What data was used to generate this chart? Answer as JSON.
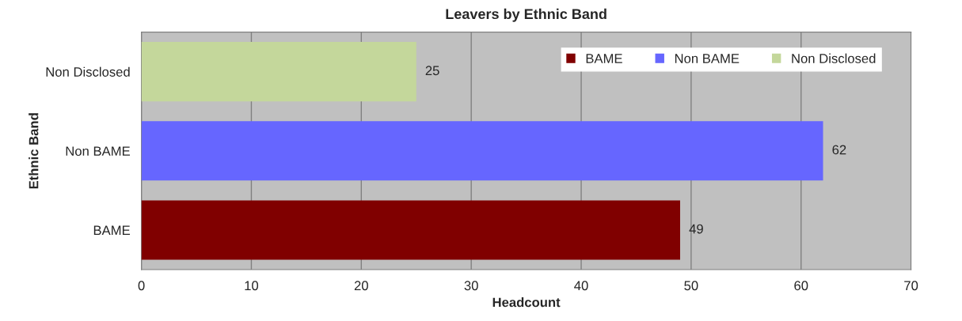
{
  "chart_data": {
    "type": "bar",
    "orientation": "horizontal",
    "title": "Leavers by Ethnic Band",
    "xlabel": "Headcount",
    "ylabel": "Ethnic Band",
    "categories": [
      "Non Disclosed",
      "Non BAME",
      "BAME"
    ],
    "series": [
      {
        "name": "BAME",
        "color": "#800000",
        "values": [
          null,
          null,
          49
        ]
      },
      {
        "name": "Non BAME",
        "color": "#6666ff",
        "values": [
          null,
          62,
          null
        ]
      },
      {
        "name": "Non Disclosed",
        "color": "#c4d79b",
        "values": [
          25,
          null,
          null
        ]
      }
    ],
    "xlim": [
      0,
      70
    ],
    "xticks": [
      0,
      10,
      20,
      30,
      40,
      50,
      60,
      70
    ],
    "grid": "x",
    "legend": "top right",
    "data_labels": true
  }
}
